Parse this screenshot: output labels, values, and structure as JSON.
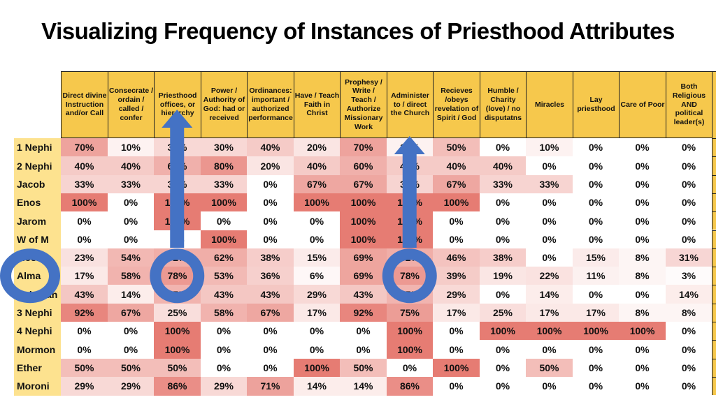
{
  "chart_data": {
    "type": "heatmap",
    "title": "Visualizing Frequency of Instances of Priesthood Attributes",
    "columns": [
      "Direct divine Instruction and/or Call",
      "Consecrate / ordain / called / confer",
      "Priesthood offices, or hierarchy",
      "Power / Authority of God: had or received",
      "Ordinances: important / authorized performance",
      "Have / Teach Faith in Christ",
      "Prophesy / Write / Teach / Authorize Missionary Work",
      "Administer to / direct the Church",
      "Recieves /obeys revelation of Spirit / God",
      "Humble / Charity (love) / no disputatns",
      "Miracles",
      "Lay priesthood",
      "Care of Poor",
      "Both Religious AND political leader(s)"
    ],
    "rows": [
      "1 Nephi",
      "2 Nephi",
      "Jacob",
      "Enos",
      "Jarom",
      "W of M",
      "Mosiah",
      "Alma",
      "Helaman",
      "3 Nephi",
      "4 Nephi",
      "Mormon",
      "Ether",
      "Moroni"
    ],
    "values": [
      [
        70,
        10,
        30,
        30,
        40,
        20,
        70,
        10,
        50,
        0,
        10,
        0,
        0,
        0
      ],
      [
        40,
        40,
        60,
        80,
        20,
        40,
        60,
        40,
        40,
        40,
        0,
        0,
        0,
        0
      ],
      [
        33,
        33,
        33,
        33,
        0,
        67,
        67,
        33,
        67,
        33,
        33,
        0,
        0,
        0
      ],
      [
        100,
        0,
        100,
        100,
        0,
        100,
        100,
        100,
        100,
        0,
        0,
        0,
        0,
        0
      ],
      [
        0,
        0,
        100,
        0,
        0,
        0,
        100,
        100,
        0,
        0,
        0,
        0,
        0,
        0
      ],
      [
        0,
        0,
        0,
        100,
        0,
        0,
        100,
        100,
        0,
        0,
        0,
        0,
        0,
        0
      ],
      [
        23,
        54,
        62,
        62,
        38,
        15,
        69,
        62,
        46,
        38,
        0,
        15,
        8,
        31
      ],
      [
        17,
        58,
        78,
        53,
        36,
        6,
        69,
        78,
        39,
        19,
        22,
        11,
        8,
        3
      ],
      [
        43,
        14,
        57,
        43,
        43,
        29,
        43,
        57,
        29,
        0,
        14,
        0,
        0,
        14
      ],
      [
        92,
        67,
        25,
        58,
        67,
        17,
        92,
        75,
        17,
        25,
        17,
        17,
        8,
        8
      ],
      [
        0,
        0,
        100,
        0,
        0,
        0,
        0,
        100,
        0,
        100,
        100,
        100,
        100,
        0
      ],
      [
        0,
        0,
        100,
        0,
        0,
        0,
        0,
        100,
        0,
        0,
        0,
        0,
        0,
        0
      ],
      [
        50,
        50,
        50,
        0,
        0,
        100,
        50,
        0,
        100,
        0,
        50,
        0,
        0,
        0
      ],
      [
        29,
        29,
        86,
        29,
        71,
        14,
        14,
        86,
        0,
        0,
        0,
        0,
        0,
        0
      ]
    ],
    "value_format": "percent",
    "color_scale": {
      "min": 0,
      "max": 100,
      "min_color": "#ffffff",
      "max_color": "#e67c73"
    },
    "annotations": [
      {
        "type": "arrow",
        "direction": "up",
        "column": "Priesthood offices, or hierarchy",
        "color": "#4472c4"
      },
      {
        "type": "arrow",
        "direction": "up",
        "column": "Administer to / direct the Church",
        "color": "#4472c4"
      },
      {
        "type": "circle",
        "target": "Alma",
        "color": "#4472c4"
      },
      {
        "type": "circle",
        "target": "Alma / Priesthood offices, or hierarchy (78%)",
        "color": "#4472c4"
      },
      {
        "type": "circle",
        "target": "Alma / Administer to / direct the Church (78%)",
        "color": "#4472c4"
      }
    ],
    "header_color": "#f6c84c",
    "row_label_color": "#fde28f"
  }
}
